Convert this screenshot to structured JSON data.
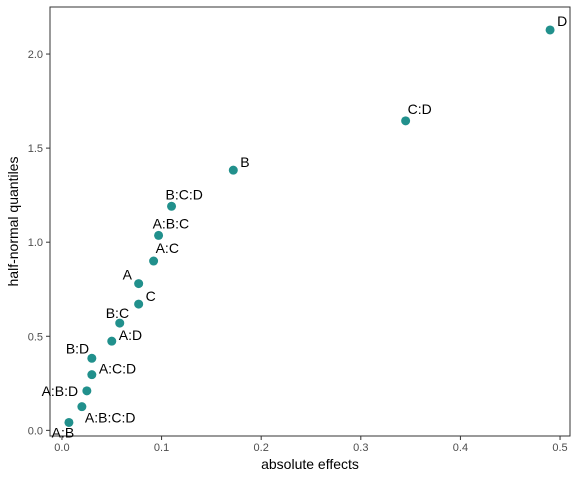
{
  "chart_data": {
    "type": "scatter",
    "title": "",
    "xlabel": "absolute effects",
    "ylabel": "half-normal quantiles",
    "xlim": [
      -0.012,
      0.51
    ],
    "ylim": [
      -0.03,
      2.25
    ],
    "x_ticks": [
      {
        "value": 0.0,
        "label": "0.0"
      },
      {
        "value": 0.1,
        "label": "0.1"
      },
      {
        "value": 0.2,
        "label": "0.2"
      },
      {
        "value": 0.3,
        "label": "0.3"
      },
      {
        "value": 0.4,
        "label": "0.4"
      },
      {
        "value": 0.5,
        "label": "0.5"
      }
    ],
    "y_ticks": [
      {
        "value": 0.0,
        "label": "0.0"
      },
      {
        "value": 0.5,
        "label": "0.5"
      },
      {
        "value": 1.0,
        "label": "1.0"
      },
      {
        "value": 1.5,
        "label": "1.5"
      },
      {
        "value": 2.0,
        "label": "2.0"
      }
    ],
    "grid": false,
    "legend": "none",
    "point_color": "#21908C",
    "points": [
      {
        "label": "A:B",
        "x": 0.007,
        "y": 0.042
      },
      {
        "label": "A:B:C:D",
        "x": 0.02,
        "y": 0.126
      },
      {
        "label": "A:B:D",
        "x": 0.025,
        "y": 0.21
      },
      {
        "label": "A:C:D",
        "x": 0.03,
        "y": 0.296
      },
      {
        "label": "B:D",
        "x": 0.03,
        "y": 0.383
      },
      {
        "label": "A:D",
        "x": 0.05,
        "y": 0.474
      },
      {
        "label": "B:C",
        "x": 0.058,
        "y": 0.57
      },
      {
        "label": "C",
        "x": 0.077,
        "y": 0.671
      },
      {
        "label": "A",
        "x": 0.077,
        "y": 0.78
      },
      {
        "label": "A:C",
        "x": 0.092,
        "y": 0.9
      },
      {
        "label": "A:B:C",
        "x": 0.097,
        "y": 1.036
      },
      {
        "label": "B:C:D",
        "x": 0.11,
        "y": 1.191
      },
      {
        "label": "B",
        "x": 0.172,
        "y": 1.383
      },
      {
        "label": "C:D",
        "x": 0.345,
        "y": 1.645
      },
      {
        "label": "D",
        "x": 0.49,
        "y": 2.128
      }
    ]
  }
}
